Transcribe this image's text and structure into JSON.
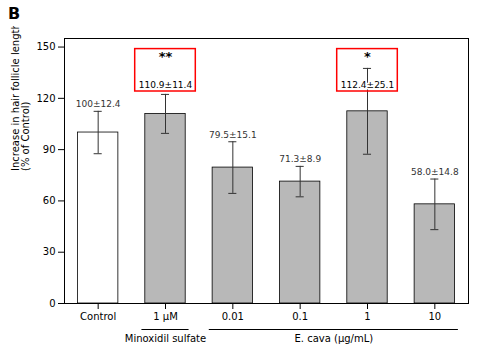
{
  "chart_data": {
    "type": "bar",
    "title": "B",
    "categories": [
      "Control",
      "1 μM",
      "0.01",
      "0.1",
      "1",
      "10"
    ],
    "values": [
      100,
      110.9,
      79.5,
      71.3,
      112.4,
      58.0
    ],
    "errors": [
      12.4,
      11.4,
      15.1,
      8.9,
      25.1,
      14.8
    ],
    "value_labels": [
      "100±12.4",
      "110.9±11.4",
      "79.5±15.1",
      "71.3±8.9",
      "112.4±25.1",
      "58.0±14.8"
    ],
    "data_labels": true,
    "colors": [
      "white",
      "#b8b8b8",
      "#b8b8b8",
      "#b8b8b8",
      "#b8b8b8",
      "#b8b8b8"
    ],
    "ylabel": "Increase in hair follicle length\n(% of Control)",
    "ylim": [
      0,
      155
    ],
    "yticks": [
      0,
      30,
      60,
      90,
      120,
      150
    ],
    "grid": false,
    "annotations": [
      {
        "x": "1 μM",
        "text": "**"
      },
      {
        "x": "1",
        "text": "*"
      }
    ],
    "group_labels": [
      {
        "text": "Minoxidil sulfate",
        "categories": [
          "1 μM"
        ]
      },
      {
        "text": "E. cava (μg/mL)",
        "categories": [
          "0.01",
          "0.1",
          "1",
          "10"
        ]
      }
    ]
  }
}
